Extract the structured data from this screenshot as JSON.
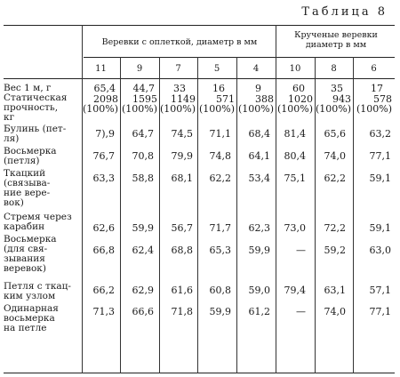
{
  "caption": "Таблица 8",
  "header": {
    "group_braided": "Веревки с оплеткой, диаметр в мм",
    "group_twisted": "Крученые веревки\nдиаметр в мм",
    "diameters": [
      "11",
      "9",
      "7",
      "5",
      "4",
      "10",
      "8",
      "6"
    ]
  },
  "rows": [
    {
      "label": "Вес 1 м, г",
      "values": [
        "65,4",
        "44,7",
        "33",
        "16",
        "9",
        "60",
        "35",
        "17"
      ]
    },
    {
      "label": "Статическая\nпрочность,\nкг",
      "values": [
        "2098\n(100%)",
        "1595\n(100%)",
        "1149\n(100%)",
        "571\n(100%)",
        "388\n(100%)",
        "1020\n(100%)",
        "943\n(100%)",
        "578\n(100%)"
      ]
    },
    {
      "label": "Булинь (пет-\nля)",
      "values": [
        "7),9",
        "64,7",
        "74,5",
        "71,1",
        "68,4",
        "81,4",
        "65,6",
        "63,2"
      ]
    },
    {
      "label": "Восьмерка\n(петля)",
      "values": [
        "76,7",
        "70,8",
        "79,9",
        "74,8",
        "64,1",
        "80,4",
        "74,0",
        "77,1"
      ]
    },
    {
      "label": "Ткацкий\n(связыва-\nние вере-\nвок)",
      "values": [
        "63,3",
        "58,8",
        "68,1",
        "62,2",
        "53,4",
        "75,1",
        "62,2",
        "59,1"
      ]
    },
    {
      "label": "Стремя через\nкарабин",
      "values": [
        "62,6",
        "59,9",
        "56,7",
        "71,7",
        "62,3",
        "73,0",
        "72,2",
        "59,1"
      ]
    },
    {
      "label": "Восьмерка\n(для свя-\nзывания\nверевок)",
      "values": [
        "66,8",
        "62,4",
        "68,8",
        "65,3",
        "59,9",
        "—",
        "59,2",
        "63,0"
      ]
    },
    {
      "label": "Петля с ткац-\nким узлом",
      "values": [
        "66,2",
        "62,9",
        "61,6",
        "60,8",
        "59,0",
        "79,4",
        "63,1",
        "57,1"
      ]
    },
    {
      "label": "Одинарная\nвосьмерка\nна петле",
      "values": [
        "71,3",
        "66,6",
        "71,8",
        "59,9",
        "61,2",
        "—",
        "74,0",
        "77,1"
      ]
    }
  ]
}
